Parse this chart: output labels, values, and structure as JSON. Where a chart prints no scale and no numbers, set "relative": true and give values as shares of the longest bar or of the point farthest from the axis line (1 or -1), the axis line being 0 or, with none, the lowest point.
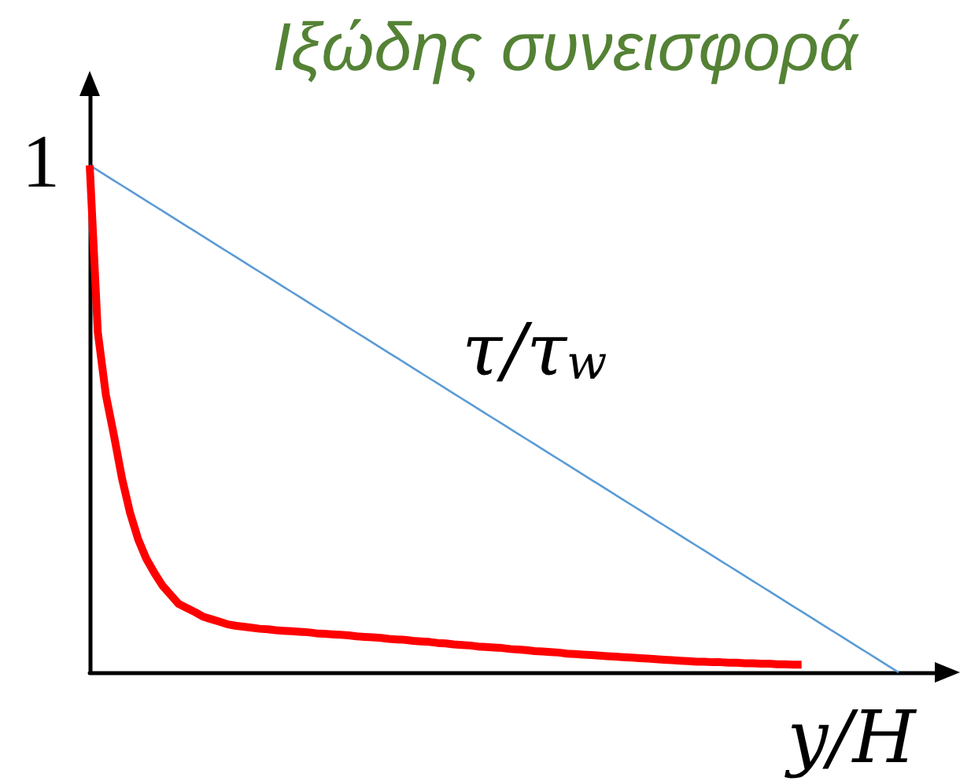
{
  "chart_data": {
    "type": "line",
    "title": "Ιξώδης συνεισφορά",
    "xlabel": "y/H",
    "relative": true,
    "marker": "none",
    "categories": [
      null,
      null,
      null,
      null,
      null,
      null,
      null,
      null,
      null,
      null,
      null,
      null,
      null,
      null,
      null,
      null,
      null,
      null,
      null,
      null,
      null,
      null,
      null,
      null,
      null,
      null,
      null,
      null,
      null,
      null,
      null,
      null,
      null,
      null,
      null,
      null,
      null,
      null,
      null,
      null,
      null,
      null,
      null,
      null,
      null,
      null,
      null,
      null,
      null,
      null,
      null,
      null,
      null,
      null,
      null,
      null,
      null,
      null,
      null,
      null,
      null,
      null,
      null,
      null,
      null,
      null,
      null,
      null,
      null,
      null,
      null,
      null,
      null,
      null,
      null,
      null,
      null,
      null,
      null,
      null,
      null,
      null,
      null,
      null,
      null,
      null,
      null,
      null,
      null,
      null,
      null,
      null,
      null,
      null,
      null,
      null,
      null,
      null,
      null,
      null,
      null
    ],
    "series": [
      {
        "name": "τ/τ$_{w}$",
        "color": "#5b9bd5",
        "values": [
          1,
          0.99,
          0.98,
          0.97,
          0.96,
          0.95,
          0.94,
          0.93,
          0.92,
          0.91,
          0.9,
          0.89,
          0.88,
          0.87,
          0.86,
          0.85,
          0.84,
          0.83,
          0.82,
          0.81,
          0.8,
          0.79,
          0.78,
          0.77,
          0.76,
          0.75,
          0.74,
          0.73,
          0.72,
          0.71,
          0.7,
          0.69,
          0.68,
          0.67,
          0.66,
          0.65,
          0.64,
          0.63,
          0.62,
          0.61,
          0.6,
          0.59,
          0.58,
          0.57,
          0.56,
          0.55,
          0.54,
          0.53,
          0.52,
          0.51,
          0.5,
          0.49,
          0.48,
          0.47,
          0.46,
          0.45,
          0.44,
          0.43,
          0.42,
          0.41,
          0.4,
          0.39,
          0.38,
          0.37,
          0.36,
          0.35,
          0.34,
          0.33,
          0.32,
          0.31,
          0.3,
          0.29,
          0.28,
          0.27,
          0.26,
          0.25,
          0.24,
          0.23,
          0.22,
          0.21,
          0.2,
          0.19,
          0.18,
          0.17,
          0.16,
          0.15,
          0.14,
          0.13,
          0.12,
          0.11,
          0.1,
          0.09,
          0.08,
          0.07,
          0.06,
          0.05,
          0.04,
          0.03,
          0.02,
          0.01,
          0
        ]
      },
      {
        "color": "#ff0000",
        "values": [
          1,
          0.671,
          0.547,
          0.467,
          0.382,
          0.314,
          0.262,
          0.224,
          0.196,
          0.171,
          0.153,
          0.135,
          0.127,
          0.119,
          0.11,
          0.105,
          0.1,
          0.095,
          0.092,
          0.09,
          0.088,
          0.086,
          0.085,
          0.083,
          0.082,
          0.081,
          0.08,
          0.079,
          0.077,
          0.076,
          0.075,
          0.074,
          0.073,
          0.071,
          0.07,
          0.069,
          0.068,
          0.066,
          0.065,
          0.064,
          0.062,
          0.061,
          0.06,
          0.058,
          0.057,
          0.055,
          0.054,
          0.053,
          0.051,
          0.05,
          0.049,
          0.048,
          0.046,
          0.045,
          0.044,
          0.042,
          0.041,
          0.04,
          0.039,
          0.037,
          0.036,
          0.035,
          0.034,
          0.033,
          0.032,
          0.031,
          0.03,
          0.029,
          0.028,
          0.027,
          0.026,
          0.025,
          0.024,
          0.023,
          0.022,
          0.021,
          0.021,
          0.02,
          0.02,
          0.019,
          0.019,
          0.018,
          0.018,
          0.017,
          0.017,
          0.016,
          0.016,
          0.015,
          0.015,
          null,
          null,
          null,
          null,
          null,
          null,
          null,
          null,
          null,
          null,
          null,
          null
        ]
      }
    ],
    "annotations": [
      "1"
    ]
  }
}
